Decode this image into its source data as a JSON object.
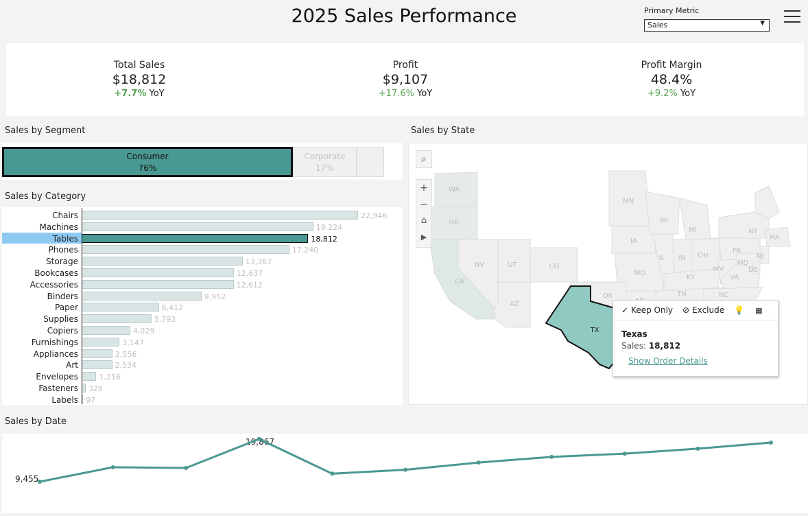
{
  "header": {
    "title": "2025 Sales Performance"
  },
  "controls": {
    "primary_metric_label": "Primary Metric",
    "primary_metric_value": "Sales",
    "menu_icon": "hamburger-menu-icon"
  },
  "kpis": [
    {
      "label": "Total Sales",
      "value": "$18,812",
      "yoy_pct": "+7.7%",
      "yoy_suffix": "YoY"
    },
    {
      "label": "Profit",
      "value": "$9,107",
      "yoy_pct": "+17.6%",
      "yoy_suffix": "YoY"
    },
    {
      "label": "Profit Margin",
      "value": "48.4%",
      "yoy_pct": "+9.2%",
      "yoy_suffix": "YoY"
    }
  ],
  "segment": {
    "title": "Sales by Segment",
    "items": [
      {
        "name": "Consumer",
        "pct": "76%"
      },
      {
        "name": "Corporate",
        "pct": "17%"
      }
    ]
  },
  "category": {
    "title": "Sales by Category",
    "selected": "Tables",
    "items": [
      {
        "name": "Chairs",
        "value": 22946,
        "label": "22,946"
      },
      {
        "name": "Machines",
        "value": 19224,
        "label": "19,224"
      },
      {
        "name": "Tables",
        "value": 18812,
        "label": "18,812"
      },
      {
        "name": "Phones",
        "value": 17240,
        "label": "17,240"
      },
      {
        "name": "Storage",
        "value": 13367,
        "label": "13,367"
      },
      {
        "name": "Bookcases",
        "value": 12637,
        "label": "12,637"
      },
      {
        "name": "Accessories",
        "value": 12612,
        "label": "12,612"
      },
      {
        "name": "Binders",
        "value": 9952,
        "label": "9,952"
      },
      {
        "name": "Paper",
        "value": 6412,
        "label": "6,412"
      },
      {
        "name": "Supplies",
        "value": 5793,
        "label": "5,793"
      },
      {
        "name": "Copiers",
        "value": 4029,
        "label": "4,029"
      },
      {
        "name": "Furnishings",
        "value": 3147,
        "label": "3,147"
      },
      {
        "name": "Appliances",
        "value": 2556,
        "label": "2,556"
      },
      {
        "name": "Art",
        "value": 2534,
        "label": "2,534"
      },
      {
        "name": "Envelopes",
        "value": 1216,
        "label": "1,216"
      },
      {
        "name": "Fasteners",
        "value": 328,
        "label": "328"
      },
      {
        "name": "Labels",
        "value": 97,
        "label": "97"
      }
    ]
  },
  "map": {
    "title": "Sales by State",
    "selected_state": "TX",
    "state_labels": [
      "WA",
      "OR",
      "CA",
      "NV",
      "UT",
      "AZ",
      "CO",
      "MN",
      "IA",
      "MO",
      "WI",
      "IL",
      "IN",
      "MI",
      "OH",
      "KY",
      "TN",
      "NC",
      "VA",
      "WV",
      "PA",
      "NY",
      "NJ",
      "MD",
      "DE",
      "MA",
      "OK",
      "AR",
      "TX"
    ],
    "controls": {
      "search_icon": "search-icon",
      "zoom_in": "+",
      "zoom_out": "−",
      "home_icon": "home-icon",
      "play_icon": "play-icon"
    }
  },
  "tooltip": {
    "keep_only": "Keep Only",
    "exclude": "Exclude",
    "state": "Texas",
    "metric_label": "Sales:",
    "metric_value": "18,812",
    "link": "Show Order Details"
  },
  "date": {
    "title": "Sales by Date",
    "start_label": "9,455",
    "peak_label": "19,867"
  },
  "colors": {
    "accent": "#4a9892",
    "positive": "#5aa454",
    "highlight": "#8ec9f3"
  },
  "chart_data": [
    {
      "type": "bar",
      "orientation": "horizontal",
      "title": "Sales by Category",
      "categories": [
        "Chairs",
        "Machines",
        "Tables",
        "Phones",
        "Storage",
        "Bookcases",
        "Accessories",
        "Binders",
        "Paper",
        "Supplies",
        "Copiers",
        "Furnishings",
        "Appliances",
        "Art",
        "Envelopes",
        "Fasteners",
        "Labels"
      ],
      "values": [
        22946,
        19224,
        18812,
        17240,
        13367,
        12637,
        12612,
        9952,
        6412,
        5793,
        4029,
        3147,
        2556,
        2534,
        1216,
        328,
        97
      ]
    },
    {
      "type": "line",
      "title": "Sales by Date",
      "values": [
        9455,
        13500,
        13300,
        19867,
        11700,
        12800,
        14800,
        16400,
        17300,
        18700,
        20400
      ]
    }
  ]
}
